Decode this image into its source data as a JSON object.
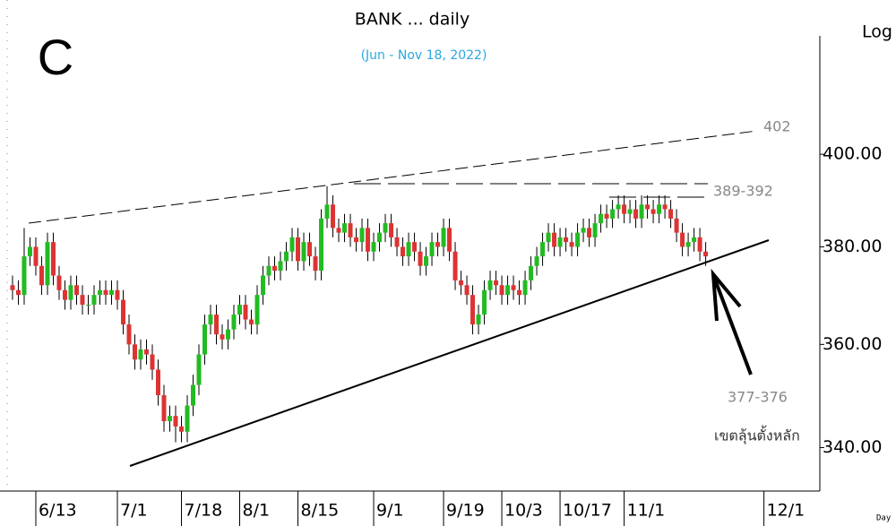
{
  "chart_data": {
    "type": "candlestick",
    "title": "BANK ... daily",
    "subtitle": "(Jun - Nov 18, 2022)",
    "panel_label": "C",
    "scale_label": "Log",
    "x_axis_label": "Day",
    "log_scale": true,
    "annotations": [
      "402",
      "389-392",
      "377-376",
      "เขตลุ้นตั้งหลัก"
    ],
    "up_color": "#22bb22",
    "down_color": "#dd3333",
    "xlim": [
      -2.15,
      138.6
    ],
    "xticks": [
      {
        "value": 4,
        "label": "6/13"
      },
      {
        "value": 18,
        "label": "7/1"
      },
      {
        "value": 29,
        "label": "7/18"
      },
      {
        "value": 39,
        "label": "8/1"
      },
      {
        "value": 49,
        "label": "8/15"
      },
      {
        "value": 62,
        "label": "9/1"
      },
      {
        "value": 74,
        "label": "9/19"
      },
      {
        "value": 84,
        "label": "10/3"
      },
      {
        "value": 94,
        "label": "10/17"
      },
      {
        "value": 105,
        "label": "11/1"
      },
      {
        "value": 129,
        "label": "12/1"
      }
    ],
    "ylim": [
      331.9,
      435.7
    ],
    "yticks": [
      {
        "value": 340,
        "label": "340.00"
      },
      {
        "value": 360,
        "label": "360.00"
      },
      {
        "value": 380,
        "label": "380.00"
      },
      {
        "value": 400,
        "label": "400.00"
      }
    ],
    "open": [
      372,
      371,
      370,
      378,
      380,
      376,
      372,
      381,
      374,
      371,
      369,
      372,
      370,
      368,
      368,
      370,
      371,
      370,
      371,
      369,
      364,
      360,
      357,
      359,
      358,
      355,
      350,
      345,
      346,
      344,
      343,
      348,
      352,
      358,
      364,
      366,
      362,
      361,
      363,
      366,
      368,
      365,
      364,
      370,
      374,
      376,
      375,
      377,
      379,
      382,
      377,
      381,
      378,
      375,
      386,
      389,
      384,
      383,
      385,
      382,
      381,
      384,
      379,
      381,
      383,
      385,
      382,
      380,
      378,
      381,
      379,
      376,
      378,
      381,
      380,
      384,
      379,
      373,
      372,
      370,
      364,
      366,
      371,
      373,
      372,
      370,
      372,
      371,
      370,
      373,
      376,
      378,
      381,
      383,
      380,
      382,
      381,
      380,
      383,
      384,
      382,
      385,
      387,
      386,
      388,
      389,
      387,
      388,
      386,
      389,
      388,
      387,
      389,
      388,
      386,
      383,
      380,
      381,
      382,
      379
    ],
    "high": [
      374,
      373,
      384,
      382,
      382,
      378,
      383,
      383,
      376,
      373,
      374,
      374,
      372,
      370,
      372,
      373,
      373,
      373,
      373,
      371,
      366,
      362,
      361,
      361,
      360,
      357,
      352,
      348,
      348,
      346,
      350,
      354,
      360,
      366,
      368,
      368,
      364,
      365,
      368,
      370,
      370,
      367,
      372,
      376,
      378,
      378,
      379,
      381,
      384,
      384,
      383,
      383,
      380,
      388,
      393,
      391,
      386,
      387,
      387,
      384,
      386,
      386,
      383,
      385,
      387,
      387,
      384,
      382,
      383,
      383,
      381,
      380,
      383,
      383,
      386,
      386,
      381,
      375,
      374,
      372,
      368,
      373,
      375,
      375,
      374,
      374,
      374,
      373,
      375,
      378,
      380,
      383,
      385,
      385,
      384,
      384,
      383,
      385,
      386,
      386,
      387,
      389,
      389,
      390,
      391,
      391,
      390,
      390,
      391,
      391,
      390,
      391,
      391,
      390,
      388,
      385,
      383,
      384,
      384,
      381
    ],
    "low": [
      369,
      368,
      368,
      376,
      374,
      370,
      370,
      372,
      369,
      367,
      367,
      368,
      366,
      366,
      366,
      368,
      368,
      368,
      367,
      362,
      358,
      355,
      355,
      356,
      353,
      348,
      343,
      343,
      341,
      341,
      341,
      346,
      350,
      356,
      362,
      360,
      359,
      359,
      361,
      364,
      363,
      362,
      362,
      368,
      372,
      373,
      373,
      375,
      377,
      375,
      375,
      376,
      373,
      373,
      384,
      382,
      381,
      381,
      380,
      379,
      379,
      377,
      377,
      379,
      381,
      380,
      378,
      376,
      376,
      377,
      374,
      374,
      376,
      378,
      378,
      377,
      371,
      370,
      368,
      362,
      362,
      364,
      369,
      370,
      368,
      368,
      369,
      368,
      368,
      371,
      374,
      376,
      379,
      378,
      378,
      379,
      378,
      378,
      381,
      380,
      380,
      383,
      384,
      384,
      386,
      385,
      385,
      384,
      384,
      386,
      385,
      385,
      386,
      384,
      381,
      378,
      378,
      379,
      377,
      376
    ],
    "close": [
      371,
      370,
      378,
      380,
      376,
      372,
      381,
      374,
      371,
      369,
      372,
      370,
      368,
      368,
      370,
      371,
      370,
      371,
      369,
      364,
      360,
      357,
      359,
      358,
      355,
      350,
      345,
      346,
      344,
      343,
      348,
      352,
      358,
      364,
      366,
      362,
      361,
      363,
      366,
      368,
      365,
      364,
      370,
      374,
      376,
      375,
      377,
      379,
      382,
      377,
      381,
      378,
      375,
      386,
      389,
      384,
      383,
      385,
      382,
      381,
      384,
      379,
      381,
      383,
      385,
      382,
      380,
      378,
      381,
      379,
      376,
      378,
      381,
      380,
      384,
      379,
      373,
      372,
      370,
      364,
      366,
      371,
      373,
      372,
      370,
      372,
      371,
      370,
      373,
      376,
      378,
      381,
      383,
      380,
      382,
      381,
      380,
      383,
      384,
      382,
      385,
      387,
      386,
      388,
      389,
      387,
      388,
      386,
      389,
      388,
      387,
      389,
      388,
      386,
      383,
      380,
      381,
      382,
      379,
      378
    ]
  }
}
